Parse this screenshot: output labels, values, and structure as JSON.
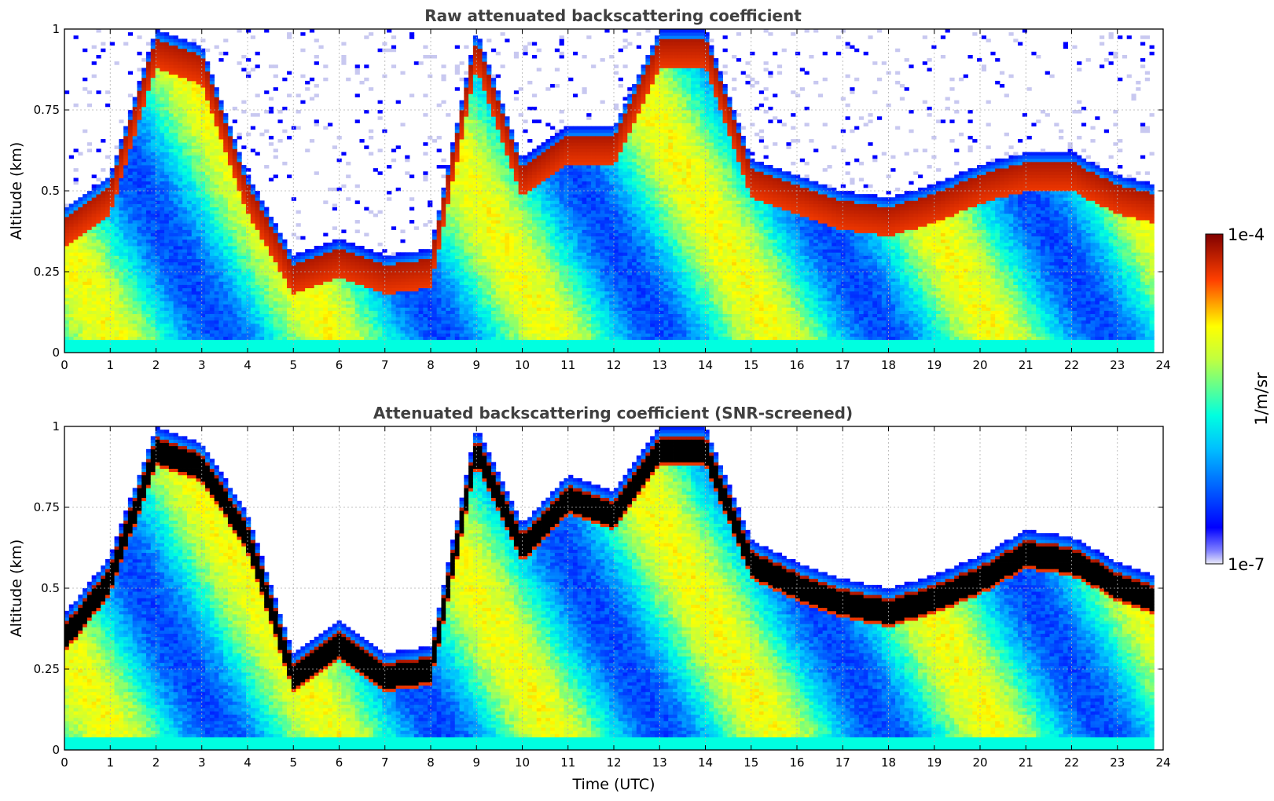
{
  "chart_data": [
    {
      "type": "heatmap",
      "title": "Raw attenuated backscattering coefficient",
      "xlabel": "",
      "ylabel": "Altitude (km)",
      "xlim": [
        0,
        24
      ],
      "ylim": [
        0,
        1
      ],
      "x_ticks": [
        "0",
        "1",
        "2",
        "3",
        "4",
        "5",
        "6",
        "7",
        "8",
        "9",
        "10",
        "11",
        "12",
        "13",
        "14",
        "15",
        "16",
        "17",
        "18",
        "19",
        "20",
        "21",
        "22",
        "23",
        "24"
      ],
      "y_ticks": [
        "0",
        "0.25",
        "0.5",
        "0.75",
        "1"
      ],
      "grid": true,
      "screened": false,
      "layer_top_km": [
        [
          0,
          0.45
        ],
        [
          1,
          0.55
        ],
        [
          2,
          1.0
        ],
        [
          3,
          0.95
        ],
        [
          4,
          0.55
        ],
        [
          5,
          0.3
        ],
        [
          6,
          0.35
        ],
        [
          7,
          0.3
        ],
        [
          8,
          0.32
        ],
        [
          9,
          1.0
        ],
        [
          10,
          0.6
        ],
        [
          11,
          0.7
        ],
        [
          12,
          0.7
        ],
        [
          13,
          1.0
        ],
        [
          14,
          1.0
        ],
        [
          15,
          0.6
        ],
        [
          16,
          0.55
        ],
        [
          17,
          0.5
        ],
        [
          18,
          0.48
        ],
        [
          19,
          0.52
        ],
        [
          20,
          0.58
        ],
        [
          21,
          0.62
        ],
        [
          22,
          0.62
        ],
        [
          23,
          0.55
        ],
        [
          23.8,
          0.52
        ]
      ],
      "noise_above_layer": true
    },
    {
      "type": "heatmap",
      "title": "Attenuated backscattering coefficient (SNR-screened)",
      "xlabel": "Time (UTC)",
      "ylabel": "Altitude (km)",
      "xlim": [
        0,
        24
      ],
      "ylim": [
        0,
        1
      ],
      "x_ticks": [
        "0",
        "1",
        "2",
        "3",
        "4",
        "5",
        "6",
        "7",
        "8",
        "9",
        "10",
        "11",
        "12",
        "13",
        "14",
        "15",
        "16",
        "17",
        "18",
        "19",
        "20",
        "21",
        "22",
        "23",
        "24"
      ],
      "y_ticks": [
        "0",
        "0.25",
        "0.5",
        "0.75",
        "1"
      ],
      "grid": true,
      "screened": true,
      "layer_top_km": [
        [
          0,
          0.42
        ],
        [
          1,
          0.6
        ],
        [
          2,
          1.0
        ],
        [
          3,
          0.95
        ],
        [
          4,
          0.73
        ],
        [
          5,
          0.3
        ],
        [
          6,
          0.4
        ],
        [
          7,
          0.3
        ],
        [
          8,
          0.32
        ],
        [
          9,
          1.0
        ],
        [
          10,
          0.7
        ],
        [
          11,
          0.85
        ],
        [
          12,
          0.8
        ],
        [
          13,
          1.0
        ],
        [
          14,
          1.0
        ],
        [
          15,
          0.65
        ],
        [
          16,
          0.58
        ],
        [
          17,
          0.53
        ],
        [
          18,
          0.5
        ],
        [
          19,
          0.54
        ],
        [
          20,
          0.6
        ],
        [
          21,
          0.68
        ],
        [
          22,
          0.66
        ],
        [
          23,
          0.58
        ],
        [
          23.8,
          0.54
        ]
      ],
      "noise_above_layer": false
    }
  ],
  "colorbar": {
    "max_label": "1e-4",
    "min_label": "1e-7",
    "unit_label": "1/m/sr",
    "scale": "log",
    "range": [
      1e-07,
      0.0001
    ],
    "colormap": "jet"
  }
}
